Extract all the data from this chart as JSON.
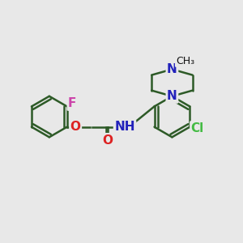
{
  "background_color": "#e8e8e8",
  "bond_color": "#2d5a27",
  "bond_width": 1.8,
  "atom_labels": {
    "F": {
      "color": "#cc44aa",
      "fontsize": 11,
      "fontweight": "bold"
    },
    "O": {
      "color": "#dd2222",
      "fontsize": 11,
      "fontweight": "bold"
    },
    "N_nh": {
      "text": "NH",
      "color": "#2222bb",
      "fontsize": 11,
      "fontweight": "bold"
    },
    "N_pip1": {
      "text": "N",
      "color": "#2222bb",
      "fontsize": 11,
      "fontweight": "bold"
    },
    "N_pip2": {
      "text": "N",
      "color": "#2222bb",
      "fontsize": 11,
      "fontweight": "bold"
    },
    "Cl": {
      "color": "#44bb44",
      "fontsize": 11,
      "fontweight": "bold"
    },
    "O_carbonyl": {
      "text": "O",
      "color": "#dd2222",
      "fontsize": 11,
      "fontweight": "bold"
    },
    "CH3": {
      "text": "CH₃",
      "color": "#111111",
      "fontsize": 9,
      "fontweight": "normal"
    }
  },
  "scale": 1.0
}
